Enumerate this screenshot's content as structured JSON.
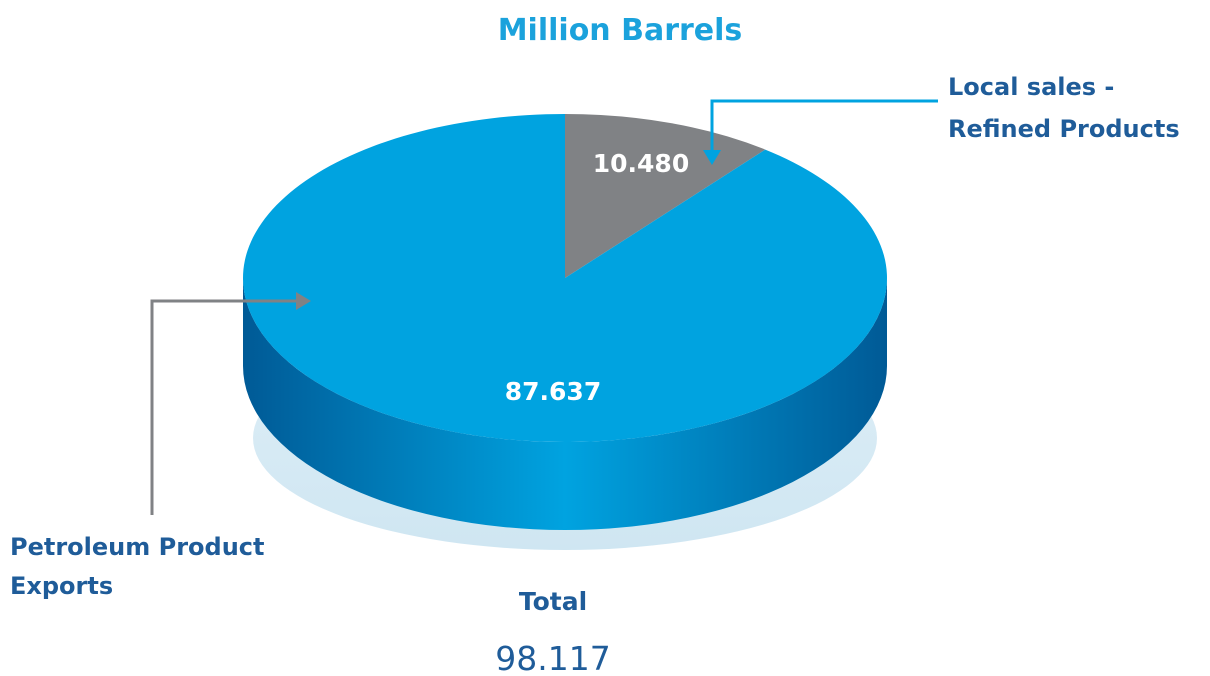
{
  "chart_data": {
    "type": "pie",
    "title": "Million Barrels",
    "slices": [
      {
        "label": "Local sales - Refined Products",
        "label_lines": [
          "Local sales -",
          "Refined Products"
        ],
        "value": 10.48,
        "display": "10.480",
        "color": "#808285"
      },
      {
        "label": "Petroleum Product Exports",
        "label_lines": [
          "Petroleum Product",
          "Exports"
        ],
        "value": 87.637,
        "display": "87.637",
        "color": "#00a3e0"
      }
    ],
    "total_label": "Total",
    "total_value": "98.117"
  },
  "colors": {
    "title": "#1ba2dc",
    "callout_text": "#1f5c99",
    "side_dark": "#005a96",
    "side_light": "#00a3e0",
    "shadow": "#cfe6f2",
    "leader_blue": "#00a3e0",
    "leader_gray": "#808285",
    "total_value": "#1f5c99"
  }
}
